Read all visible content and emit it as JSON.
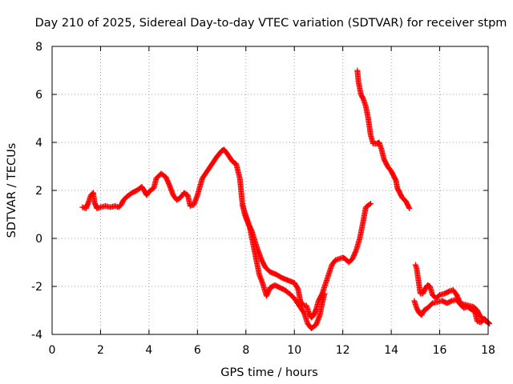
{
  "chart_data": {
    "type": "scatter",
    "title": "Day 210 of 2025, Sidereal Day-to-day VTEC variation (SDTVAR) for receiver stpm",
    "xlabel": "GPS time / hours",
    "ylabel": "SDTVAR / TECUs",
    "xlim": [
      0,
      18
    ],
    "ylim": [
      -4,
      8
    ],
    "xticks": [
      0,
      2,
      4,
      6,
      8,
      10,
      12,
      14,
      16,
      18
    ],
    "yticks": [
      -4,
      -2,
      0,
      2,
      4,
      6,
      8
    ],
    "xtick_labels": [
      "0",
      "2",
      "4",
      "6",
      "8",
      "10",
      "12",
      "14",
      "16",
      "18"
    ],
    "ytick_labels": [
      "-4",
      "-2",
      "0",
      "2",
      "4",
      "6",
      "8"
    ],
    "grid": true,
    "marker": "+",
    "color": "#ff0000",
    "series": [
      {
        "name": "stpm",
        "segments": [
          [
            [
              1.25,
              1.3
            ],
            [
              1.4,
              1.25
            ],
            [
              1.5,
              1.5
            ],
            [
              1.6,
              1.8
            ],
            [
              1.7,
              1.9
            ],
            [
              1.75,
              1.5
            ],
            [
              1.85,
              1.25
            ],
            [
              2.0,
              1.3
            ],
            [
              2.2,
              1.35
            ],
            [
              2.4,
              1.3
            ],
            [
              2.6,
              1.35
            ],
            [
              2.75,
              1.3
            ],
            [
              2.85,
              1.4
            ],
            [
              2.95,
              1.6
            ],
            [
              3.1,
              1.75
            ],
            [
              3.3,
              1.9
            ],
            [
              3.5,
              2.0
            ],
            [
              3.7,
              2.15
            ],
            [
              3.8,
              2.0
            ],
            [
              3.9,
              1.8
            ],
            [
              4.0,
              1.95
            ],
            [
              4.2,
              2.1
            ],
            [
              4.3,
              2.5
            ],
            [
              4.5,
              2.7
            ],
            [
              4.7,
              2.55
            ],
            [
              4.85,
              2.2
            ],
            [
              5.0,
              1.8
            ],
            [
              5.15,
              1.6
            ],
            [
              5.3,
              1.7
            ],
            [
              5.45,
              1.9
            ],
            [
              5.6,
              1.8
            ],
            [
              5.7,
              1.35
            ],
            [
              5.85,
              1.4
            ],
            [
              6.0,
              1.8
            ],
            [
              6.2,
              2.5
            ],
            [
              6.4,
              2.8
            ],
            [
              6.6,
              3.1
            ],
            [
              6.8,
              3.4
            ],
            [
              7.0,
              3.65
            ],
            [
              7.1,
              3.7
            ],
            [
              7.25,
              3.5
            ],
            [
              7.45,
              3.2
            ],
            [
              7.6,
              3.1
            ],
            [
              7.75,
              2.5
            ],
            [
              7.8,
              2.0
            ],
            [
              7.85,
              1.5
            ],
            [
              7.95,
              1.0
            ],
            [
              8.1,
              0.6
            ],
            [
              8.25,
              0.3
            ],
            [
              8.4,
              -0.2
            ],
            [
              8.5,
              -0.5
            ],
            [
              8.65,
              -0.9
            ],
            [
              8.8,
              -1.2
            ],
            [
              9.0,
              -1.4
            ],
            [
              9.25,
              -1.5
            ],
            [
              9.5,
              -1.65
            ],
            [
              9.75,
              -1.75
            ],
            [
              10.0,
              -1.85
            ],
            [
              10.15,
              -2.1
            ],
            [
              10.25,
              -2.6
            ],
            [
              10.35,
              -2.8
            ],
            [
              10.5,
              -2.8
            ],
            [
              10.6,
              -3.1
            ],
            [
              10.7,
              -3.3
            ],
            [
              10.8,
              -3.2
            ],
            [
              10.9,
              -2.95
            ],
            [
              11.0,
              -2.6
            ],
            [
              11.15,
              -2.3
            ],
            [
              11.25,
              -2.0
            ],
            [
              11.4,
              -1.55
            ],
            [
              11.55,
              -1.1
            ],
            [
              11.7,
              -0.9
            ],
            [
              11.85,
              -0.85
            ],
            [
              12.0,
              -0.8
            ],
            [
              12.1,
              -0.85
            ],
            [
              12.25,
              -1.0
            ],
            [
              12.4,
              -0.85
            ],
            [
              12.55,
              -0.5
            ],
            [
              12.7,
              0.0
            ],
            [
              12.85,
              0.75
            ],
            [
              12.95,
              1.3
            ],
            [
              13.15,
              1.45
            ]
          ],
          [
            [
              7.85,
              1.4
            ],
            [
              7.95,
              1.1
            ],
            [
              8.05,
              0.8
            ],
            [
              8.15,
              0.5
            ],
            [
              8.25,
              0.0
            ],
            [
              8.35,
              -0.5
            ],
            [
              8.45,
              -1.0
            ],
            [
              8.55,
              -1.5
            ],
            [
              8.7,
              -1.9
            ],
            [
              8.85,
              -2.4
            ],
            [
              9.0,
              -2.05
            ],
            [
              9.2,
              -1.95
            ],
            [
              9.4,
              -2.05
            ],
            [
              9.6,
              -2.15
            ],
            [
              9.8,
              -2.3
            ],
            [
              10.0,
              -2.5
            ],
            [
              10.2,
              -2.8
            ],
            [
              10.4,
              -3.1
            ],
            [
              10.55,
              -3.55
            ],
            [
              10.7,
              -3.75
            ],
            [
              10.9,
              -3.6
            ],
            [
              11.05,
              -3.2
            ],
            [
              11.15,
              -2.7
            ],
            [
              11.25,
              -2.3
            ]
          ],
          [
            [
              12.6,
              7.0
            ],
            [
              12.65,
              6.5
            ],
            [
              12.75,
              6.0
            ],
            [
              12.85,
              5.8
            ],
            [
              12.95,
              5.5
            ],
            [
              13.05,
              5.0
            ],
            [
              13.15,
              4.3
            ],
            [
              13.25,
              3.95
            ],
            [
              13.4,
              3.95
            ],
            [
              13.5,
              4.0
            ],
            [
              13.6,
              3.7
            ],
            [
              13.7,
              3.3
            ],
            [
              13.85,
              3.0
            ],
            [
              14.0,
              2.8
            ],
            [
              14.1,
              2.6
            ],
            [
              14.2,
              2.4
            ],
            [
              14.25,
              2.1
            ],
            [
              14.35,
              1.9
            ],
            [
              14.45,
              1.7
            ],
            [
              14.6,
              1.55
            ],
            [
              14.75,
              1.25
            ]
          ],
          [
            [
              15.0,
              -1.1
            ],
            [
              15.05,
              -1.25
            ],
            [
              15.1,
              -1.6
            ],
            [
              15.2,
              -2.3
            ],
            [
              15.3,
              -2.3
            ],
            [
              15.4,
              -2.1
            ],
            [
              15.5,
              -1.95
            ],
            [
              15.6,
              -2.0
            ],
            [
              15.7,
              -2.35
            ],
            [
              15.85,
              -2.5
            ],
            [
              16.0,
              -2.35
            ],
            [
              16.2,
              -2.3
            ],
            [
              16.4,
              -2.2
            ],
            [
              16.55,
              -2.15
            ],
            [
              16.7,
              -2.35
            ],
            [
              16.85,
              -2.7
            ],
            [
              17.0,
              -2.75
            ],
            [
              17.2,
              -2.8
            ],
            [
              17.4,
              -2.85
            ],
            [
              17.55,
              -3.0
            ],
            [
              17.7,
              -3.3
            ],
            [
              17.8,
              -3.35
            ],
            [
              17.9,
              -3.45
            ],
            [
              18.0,
              -3.5
            ]
          ],
          [
            [
              14.95,
              -2.6
            ],
            [
              15.05,
              -2.9
            ],
            [
              15.15,
              -3.1
            ],
            [
              15.25,
              -3.2
            ],
            [
              15.35,
              -3.0
            ],
            [
              15.5,
              -2.9
            ],
            [
              15.7,
              -2.7
            ],
            [
              15.9,
              -2.65
            ],
            [
              16.1,
              -2.6
            ],
            [
              16.3,
              -2.7
            ],
            [
              16.5,
              -2.6
            ],
            [
              16.7,
              -2.55
            ],
            [
              16.85,
              -2.75
            ],
            [
              17.0,
              -2.9
            ],
            [
              17.15,
              -2.85
            ],
            [
              17.3,
              -2.95
            ],
            [
              17.45,
              -3.05
            ],
            [
              17.55,
              -3.45
            ],
            [
              17.7,
              -3.5
            ],
            [
              17.85,
              -3.35
            ],
            [
              18.05,
              -3.55
            ]
          ]
        ]
      }
    ]
  }
}
